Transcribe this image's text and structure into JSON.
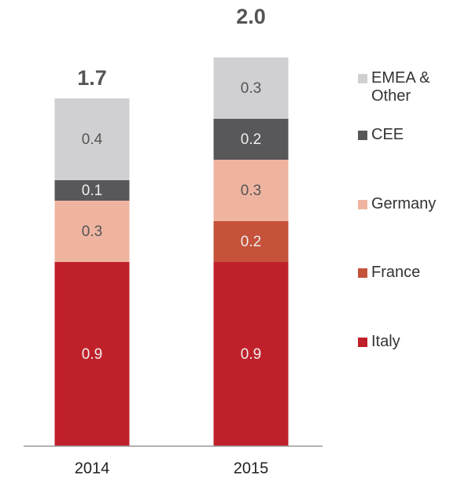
{
  "chart_data": {
    "type": "stacked_bar",
    "categories": [
      "2014",
      "2015"
    ],
    "series": [
      {
        "name": "Italy",
        "color": "#c0202a",
        "values": [
          0.9,
          0.9
        ]
      },
      {
        "name": "France",
        "color": "#c5523a",
        "values": [
          null,
          0.2
        ]
      },
      {
        "name": "Germany",
        "color": "#eeb4a0",
        "values": [
          0.3,
          0.3
        ]
      },
      {
        "name": "CEE",
        "color": "#58585a",
        "values": [
          0.1,
          0.2
        ]
      },
      {
        "name": "EMEA & Other",
        "color": "#d0d0d2",
        "values": [
          0.4,
          0.3
        ]
      }
    ],
    "totals": [
      1.7,
      2.0
    ],
    "total_labels": [
      "1.7",
      "2.0"
    ]
  }
}
